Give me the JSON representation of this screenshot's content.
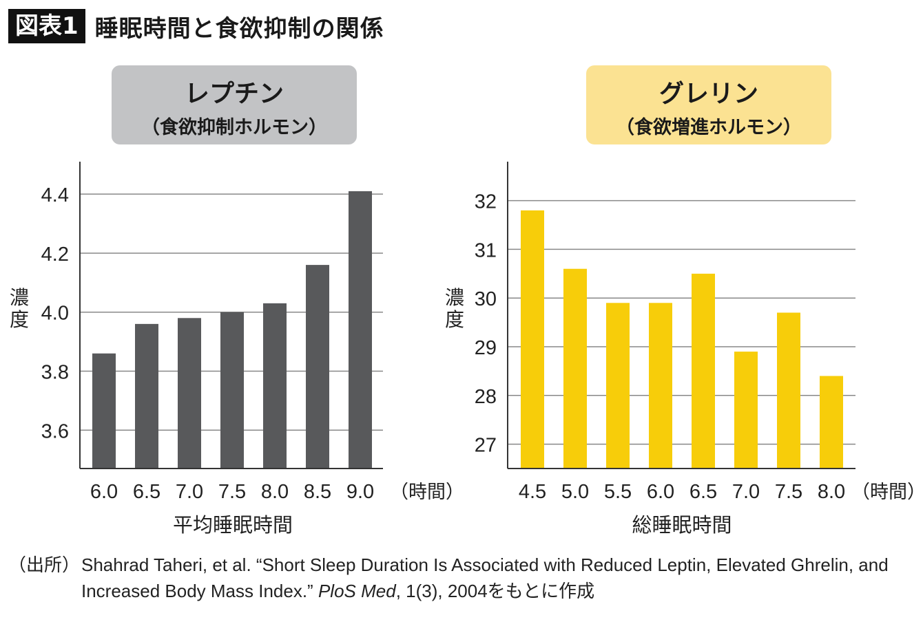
{
  "header": {
    "figure_label": "図表1",
    "title": "睡眠時間と食欲抑制の関係"
  },
  "panels": {
    "left": {
      "title": "レプチン",
      "subtitle": "（食欲抑制ホルモン）"
    },
    "right": {
      "title": "グレリン",
      "subtitle": "（食欲増進ホルモン）"
    }
  },
  "source": {
    "label": "（出所）",
    "text_before": "Shahrad Taheri, et al. “Short Sleep Duration Is Associated with Reduced Leptin, Elevated Ghrelin, and Increased Body Mass Index.” ",
    "journal": "PloS Med",
    "text_after": ", 1(3), 2004をもとに作成"
  },
  "colors": {
    "leptin_bar": "#58595b",
    "ghrelin_bar": "#f7cd0a",
    "axis": "#333333",
    "grid": "#888888"
  },
  "chart_data": [
    {
      "type": "bar",
      "title": "レプチン",
      "subtitle": "（食欲抑制ホルモン）",
      "categories": [
        "6.0",
        "6.5",
        "7.0",
        "7.5",
        "8.0",
        "8.5",
        "9.0"
      ],
      "x_unit": "（時間）",
      "values": [
        3.86,
        3.96,
        3.98,
        4.0,
        4.03,
        4.16,
        4.41
      ],
      "xlabel": "平均睡眠時間",
      "ylabel": "濃度",
      "yticks": [
        "3.6",
        "3.8",
        "4.0",
        "4.2",
        "4.4"
      ],
      "ylim": [
        3.47,
        4.51
      ],
      "grid": true
    },
    {
      "type": "bar",
      "title": "グレリン",
      "subtitle": "（食欲増進ホルモン）",
      "categories": [
        "4.5",
        "5.0",
        "5.5",
        "6.0",
        "6.5",
        "7.0",
        "7.5",
        "8.0"
      ],
      "x_unit": "（時間）",
      "values": [
        31.8,
        30.6,
        29.9,
        29.9,
        30.5,
        28.9,
        29.7,
        28.4
      ],
      "xlabel": "総睡眠時間",
      "ylabel": "濃度",
      "yticks": [
        "27",
        "28",
        "29",
        "30",
        "31",
        "32"
      ],
      "ylim": [
        26.5,
        32.8
      ],
      "grid": true
    }
  ]
}
